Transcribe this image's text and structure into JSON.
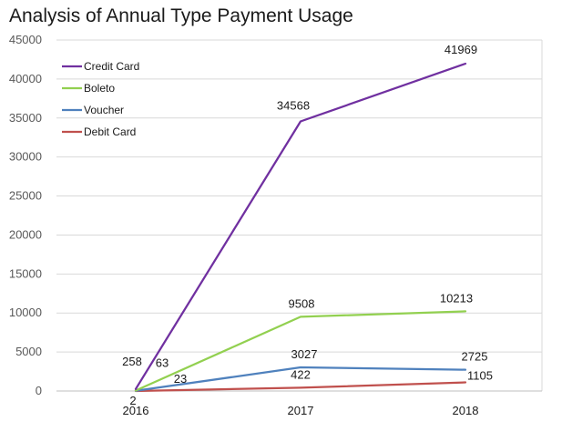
{
  "chart_data": {
    "type": "line",
    "title": "Analysis of Annual Type Payment Usage",
    "xlabel": "",
    "ylabel": "",
    "categories": [
      "2016",
      "2017",
      "2018"
    ],
    "ylim": [
      0,
      45000
    ],
    "yticks": [
      "0",
      "5000",
      "10000",
      "15000",
      "20000",
      "25000",
      "30000",
      "35000",
      "40000",
      "45000"
    ],
    "grid": true,
    "legend_position": "top-left",
    "series": [
      {
        "name": "Credit Card",
        "color": "#7030a0",
        "values": [
          258,
          34568,
          41969
        ],
        "labels": [
          "258",
          "34568",
          "41969"
        ]
      },
      {
        "name": "Boleto",
        "color": "#92d050",
        "values": [
          63,
          9508,
          10213
        ],
        "labels": [
          "63",
          "9508",
          "10213"
        ]
      },
      {
        "name": "Voucher",
        "color": "#4f81bd",
        "values": [
          23,
          3027,
          2725
        ],
        "labels": [
          "23",
          "3027",
          "2725"
        ]
      },
      {
        "name": "Debit Card",
        "color": "#c0504d",
        "values": [
          2,
          422,
          1105
        ],
        "labels": [
          "2",
          "422",
          "1105"
        ]
      }
    ]
  }
}
